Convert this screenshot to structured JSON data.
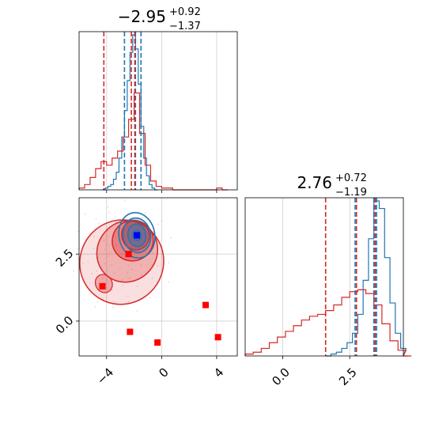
{
  "chart_data": [
    {
      "type": "histogram",
      "panel": "marginal-param-1",
      "title_value": "−2.95",
      "title_plus": "+0.92",
      "title_minus": "−1.37",
      "xlim": [
        -6,
        5.5
      ],
      "x_ticks": [
        -4,
        0,
        4
      ],
      "grid": true,
      "series": [
        {
          "color": "#1f77b4",
          "bins": [
            [
              -4.3,
              0.0
            ],
            [
              -4.1,
              0.01
            ],
            [
              -3.9,
              0.02
            ],
            [
              -3.7,
              0.03
            ],
            [
              -3.5,
              0.06
            ],
            [
              -3.3,
              0.1
            ],
            [
              -3.1,
              0.18
            ],
            [
              -2.9,
              0.3
            ],
            [
              -2.7,
              0.45
            ],
            [
              -2.5,
              0.62
            ],
            [
              -2.3,
              0.78
            ],
            [
              -2.1,
              0.88
            ],
            [
              -1.9,
              0.8
            ],
            [
              -1.7,
              0.6
            ],
            [
              -1.5,
              0.36
            ],
            [
              -1.3,
              0.18
            ],
            [
              -1.1,
              0.08
            ],
            [
              -0.9,
              0.03
            ],
            [
              -0.7,
              0.01
            ],
            [
              -0.5,
              0.0
            ]
          ],
          "quantile_lines": [
            -2.7,
            -1.9,
            -1.5
          ]
        },
        {
          "color": "#d62728",
          "bins": [
            [
              -6.0,
              0.01
            ],
            [
              -5.6,
              0.03
            ],
            [
              -5.2,
              0.07
            ],
            [
              -4.8,
              0.12
            ],
            [
              -4.4,
              0.16
            ],
            [
              -4.0,
              0.14
            ],
            [
              -3.6,
              0.18
            ],
            [
              -3.2,
              0.22
            ],
            [
              -2.8,
              0.3
            ],
            [
              -2.4,
              0.4
            ],
            [
              -2.0,
              0.55
            ],
            [
              -1.6,
              0.32
            ],
            [
              -1.2,
              0.14
            ],
            [
              -0.8,
              0.05
            ],
            [
              -0.4,
              0.02
            ],
            [
              0.0,
              0.01
            ],
            [
              0.4,
              0.01
            ],
            [
              0.8,
              0.0
            ],
            [
              1.2,
              0.0
            ],
            [
              1.6,
              0.0
            ],
            [
              2.0,
              0.0
            ],
            [
              2.4,
              0.0
            ],
            [
              2.8,
              0.0
            ],
            [
              3.2,
              0.0
            ],
            [
              3.6,
              0.0
            ],
            [
              4.0,
              0.01
            ],
            [
              4.4,
              0.0
            ]
          ],
          "quantile_lines": [
            -4.2,
            -2.2,
            -1.95
          ]
        }
      ]
    },
    {
      "type": "histogram",
      "panel": "marginal-param-2",
      "title_value": "2.76",
      "title_plus": "+0.72",
      "title_minus": "−1.19",
      "xlim": [
        -1.4,
        4.5
      ],
      "x_ticks": [
        0.0,
        2.5
      ],
      "x_tick_labels": [
        "0.0",
        "2.5"
      ],
      "grid": true,
      "series": [
        {
          "color": "#1f77b4",
          "bins": [
            [
              1.6,
              0.0
            ],
            [
              1.8,
              0.01
            ],
            [
              2.0,
              0.02
            ],
            [
              2.2,
              0.04
            ],
            [
              2.4,
              0.07
            ],
            [
              2.6,
              0.12
            ],
            [
              2.8,
              0.22
            ],
            [
              3.0,
              0.4
            ],
            [
              3.2,
              0.62
            ],
            [
              3.4,
              0.82
            ],
            [
              3.6,
              0.78
            ],
            [
              3.8,
              0.52
            ],
            [
              4.0,
              0.28
            ],
            [
              4.2,
              0.12
            ],
            [
              4.4,
              0.04
            ],
            [
              4.5,
              0.0
            ]
          ],
          "quantile_lines": [
            2.7,
            3.4,
            3.5
          ]
        },
        {
          "color": "#d62728",
          "bins": [
            [
              -1.4,
              0.01
            ],
            [
              -1.1,
              0.02
            ],
            [
              -0.8,
              0.04
            ],
            [
              -0.5,
              0.07
            ],
            [
              -0.2,
              0.1
            ],
            [
              0.1,
              0.13
            ],
            [
              0.4,
              0.16
            ],
            [
              0.7,
              0.19
            ],
            [
              1.0,
              0.21
            ],
            [
              1.3,
              0.22
            ],
            [
              1.6,
              0.24
            ],
            [
              1.9,
              0.27
            ],
            [
              2.2,
              0.31
            ],
            [
              2.5,
              0.34
            ],
            [
              2.8,
              0.35
            ],
            [
              3.1,
              0.33
            ],
            [
              3.4,
              0.27
            ],
            [
              3.7,
              0.17
            ],
            [
              4.0,
              0.08
            ],
            [
              4.3,
              0.03
            ],
            [
              4.5,
              0.0
            ]
          ],
          "quantile_lines": [
            1.6,
            2.75,
            3.45
          ]
        }
      ]
    },
    {
      "type": "scatter",
      "panel": "joint-param-1-param-2",
      "xlim": [
        -6,
        5.5
      ],
      "ylim": [
        -1.3,
        4.6
      ],
      "x_ticks": [
        -4,
        0,
        4
      ],
      "y_ticks": [
        0.0,
        2.5
      ],
      "x_tick_labels": [
        "−4",
        "0",
        "4"
      ],
      "y_tick_labels": [
        "0.0",
        "2.5"
      ],
      "grid": true,
      "contour_color_red": "#d62728",
      "contour_color_blue": "#1f77b4",
      "red_points": [
        {
          "x": -4.3,
          "y": 1.3
        },
        {
          "x": -2.4,
          "y": 2.5
        },
        {
          "x": -2.3,
          "y": -0.4
        },
        {
          "x": -0.3,
          "y": -0.8
        },
        {
          "x": 3.2,
          "y": 0.6
        },
        {
          "x": 4.1,
          "y": -0.6
        },
        {
          "x": -1.8,
          "y": 3.2
        }
      ],
      "blue_points": [
        {
          "x": -1.8,
          "y": 3.2
        }
      ]
    }
  ]
}
